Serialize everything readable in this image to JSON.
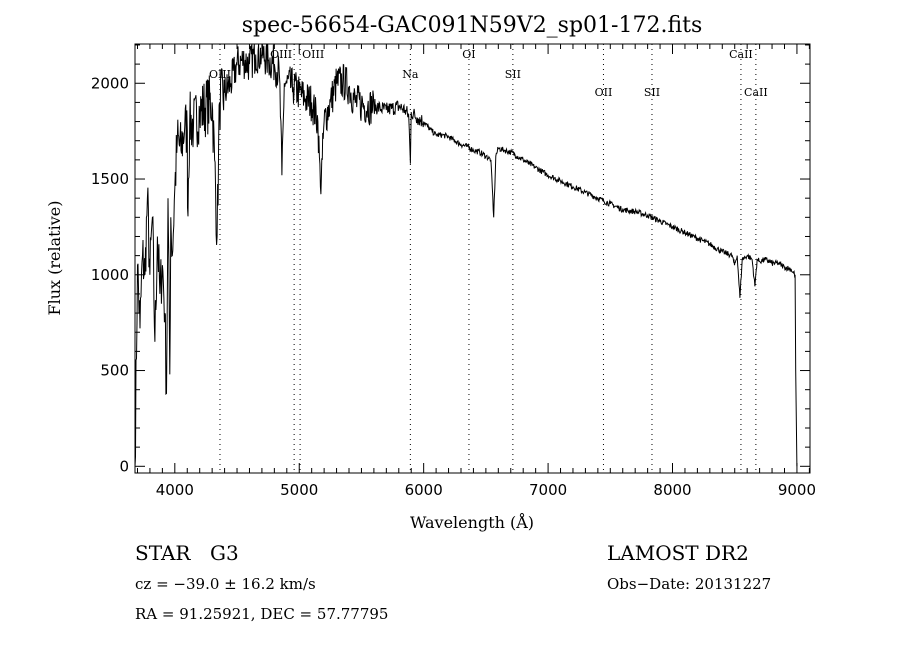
{
  "chart_data": {
    "type": "line",
    "title": "spec-56654-GAC091N59V2_sp01-172.fits",
    "xlabel": "Wavelength (Å)",
    "ylabel": "Flux (relative)",
    "xlim": [
      3680,
      9105
    ],
    "ylim": [
      -35,
      2205
    ],
    "xticks": [
      4000,
      5000,
      6000,
      7000,
      8000,
      9000
    ],
    "yticks": [
      0,
      500,
      1000,
      1500,
      2000
    ],
    "grid": false,
    "series": [
      {
        "name": "flux",
        "x": [
          3680,
          3700,
          3720,
          3740,
          3760,
          3780,
          3800,
          3820,
          3840,
          3860,
          3880,
          3900,
          3920,
          3933,
          3945,
          3960,
          3968,
          3980,
          4000,
          4020,
          4050,
          4080,
          4100,
          4102,
          4120,
          4150,
          4200,
          4250,
          4300,
          4320,
          4340,
          4360,
          4400,
          4450,
          4500,
          4550,
          4600,
          4650,
          4700,
          4750,
          4800,
          4840,
          4861,
          4880,
          4900,
          4950,
          5000,
          5050,
          5100,
          5150,
          5170,
          5185,
          5200,
          5250,
          5300,
          5350,
          5400,
          5450,
          5500,
          5550,
          5600,
          5650,
          5700,
          5750,
          5800,
          5850,
          5880,
          5893,
          5900,
          5950,
          6000,
          6050,
          6100,
          6150,
          6200,
          6250,
          6300,
          6350,
          6400,
          6450,
          6500,
          6540,
          6563,
          6580,
          6600,
          6650,
          6700,
          6750,
          6800,
          6850,
          6900,
          6950,
          7000,
          7100,
          7200,
          7300,
          7400,
          7500,
          7600,
          7700,
          7800,
          7900,
          8000,
          8100,
          8200,
          8300,
          8400,
          8480,
          8498,
          8520,
          8542,
          8560,
          8600,
          8640,
          8662,
          8680,
          8700,
          8750,
          8800,
          8850,
          8900,
          8950,
          8985,
          8990,
          9000
        ],
        "y": [
          0,
          1050,
          720,
          1100,
          1000,
          1400,
          1000,
          1300,
          650,
          1200,
          900,
          1050,
          800,
          380,
          1400,
          480,
          1300,
          1100,
          1450,
          1700,
          1650,
          1780,
          1750,
          1350,
          1800,
          1780,
          1850,
          1880,
          1900,
          1600,
          1200,
          1900,
          1950,
          2000,
          2100,
          2120,
          2100,
          2150,
          2150,
          2120,
          2100,
          2050,
          1520,
          2000,
          2000,
          1980,
          1950,
          1920,
          1900,
          1800,
          1460,
          1600,
          1800,
          1900,
          2000,
          2010,
          1980,
          1900,
          1890,
          1880,
          1880,
          1870,
          1860,
          1870,
          1880,
          1860,
          1830,
          1580,
          1850,
          1820,
          1800,
          1760,
          1730,
          1730,
          1720,
          1700,
          1680,
          1670,
          1650,
          1640,
          1620,
          1600,
          1300,
          1620,
          1660,
          1650,
          1640,
          1620,
          1600,
          1580,
          1560,
          1540,
          1520,
          1490,
          1460,
          1430,
          1400,
          1370,
          1340,
          1330,
          1310,
          1280,
          1250,
          1220,
          1190,
          1160,
          1120,
          1100,
          1050,
          1100,
          880,
          1080,
          1100,
          1080,
          940,
          1080,
          1070,
          1080,
          1060,
          1060,
          1040,
          1030,
          1000,
          500,
          0
        ]
      }
    ],
    "annotations": [
      {
        "label": "OIII",
        "x": 4363,
        "row": 2
      },
      {
        "label": "OIII",
        "x": 4959,
        "row": 1
      },
      {
        "label": "OIII",
        "x": 5007,
        "row": 0
      },
      {
        "label": "Na",
        "x": 5893,
        "row": 2
      },
      {
        "label": "OI",
        "x": 6364,
        "row": 1
      },
      {
        "label": "SII",
        "x": 6717,
        "row": 2
      },
      {
        "label": "OII",
        "x": 7445,
        "row": 3
      },
      {
        "label": "SII",
        "x": 7835,
        "row": 3
      },
      {
        "label": "CaII",
        "x": 8550,
        "row": 1
      },
      {
        "label": "CaII",
        "x": 8670,
        "row": 3
      }
    ]
  },
  "info": {
    "object_class": "STAR",
    "subclass": "G3",
    "release": "LAMOST DR2",
    "redshift": "cz = −39.0 ± 16.2 km/s",
    "obs_date": "Obs−Date: 20131227",
    "coords": "RA =  91.25921, DEC =  57.77795"
  }
}
